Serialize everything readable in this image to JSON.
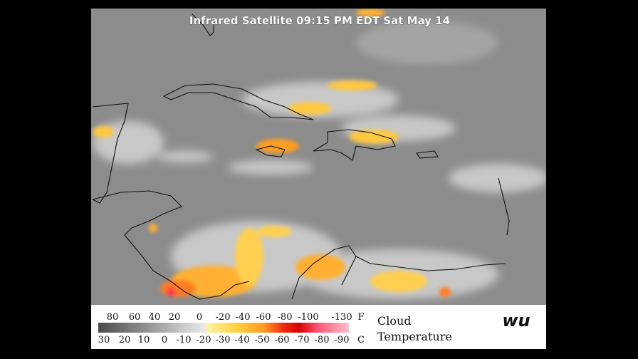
{
  "map": {
    "title": "Infrared Satellite 09:15 PM EDT Sat May 14"
  },
  "legend": {
    "fahrenheit": {
      "labels": [
        80,
        60,
        40,
        20,
        0,
        -20,
        -40,
        -60,
        -80,
        -100,
        -130
      ],
      "unit": "F"
    },
    "celsius": {
      "labels": [
        30,
        20,
        10,
        0,
        -10,
        -20,
        -30,
        -40,
        -50,
        -60,
        -70,
        -80,
        -90
      ],
      "unit": "C"
    },
    "caption": [
      "Cloud",
      "Temperature"
    ],
    "logo": "wu"
  }
}
